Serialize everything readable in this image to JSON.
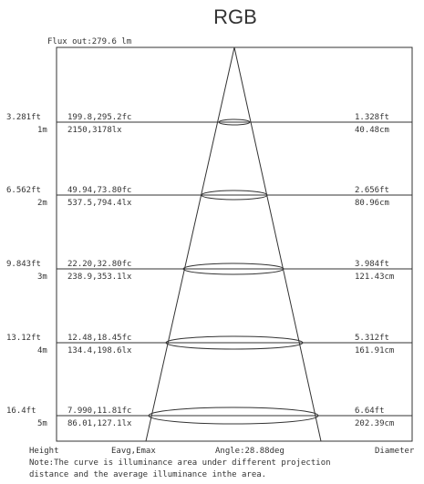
{
  "title": "RGB",
  "flux_out": "Flux out:279.6 lm",
  "rows": [
    {
      "height_ft": "3.281ft",
      "height_m": "1m",
      "fc": "199.8,295.2fc",
      "lx": "2150,3178lx",
      "diam_ft": "1.328ft",
      "diam_cm": "40.48cm"
    },
    {
      "height_ft": "6.562ft",
      "height_m": "2m",
      "fc": "49.94,73.80fc",
      "lx": "537.5,794.4lx",
      "diam_ft": "2.656ft",
      "diam_cm": "80.96cm"
    },
    {
      "height_ft": "9.843ft",
      "height_m": "3m",
      "fc": "22.20,32.80fc",
      "lx": "238.9,353.1lx",
      "diam_ft": "3.984ft",
      "diam_cm": "121.43cm"
    },
    {
      "height_ft": "13.12ft",
      "height_m": "4m",
      "fc": "12.48,18.45fc",
      "lx": "134.4,198.6lx",
      "diam_ft": "5.312ft",
      "diam_cm": "161.91cm"
    },
    {
      "height_ft": "16.4ft",
      "height_m": "5m",
      "fc": "7.990,11.81fc",
      "lx": "86.01,127.1lx",
      "diam_ft": "6.64ft",
      "diam_cm": "202.39cm"
    }
  ],
  "footer": {
    "height_label": "Height",
    "eavg_label": "Eavg,Emax",
    "angle_label": "Angle:28.88deg",
    "diameter_label": "Diameter",
    "note_line1": "Note:The curve is illuminance area under different projection",
    "note_line2": "distance and the average illuminance inthe area."
  }
}
